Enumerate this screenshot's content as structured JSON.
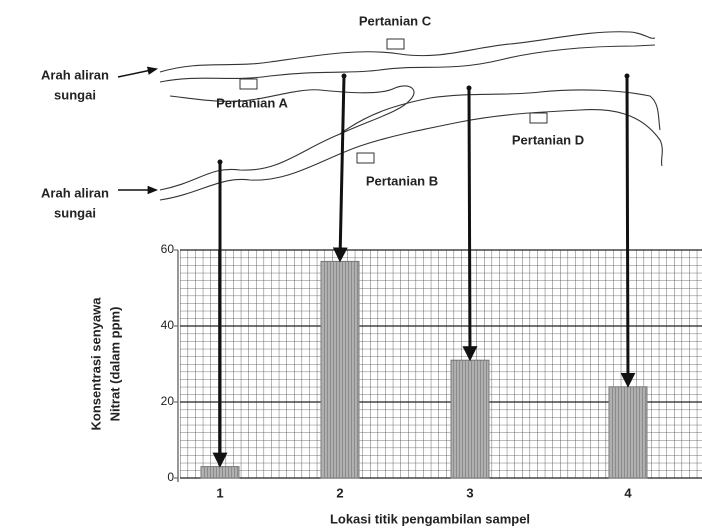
{
  "chart_data": {
    "type": "bar",
    "categories": [
      "1",
      "2",
      "3",
      "4"
    ],
    "values": [
      3,
      57,
      31,
      24
    ],
    "color": "#9a9a9a",
    "ylim": [
      0,
      60
    ],
    "yticks": [
      0,
      20,
      40,
      60
    ],
    "grid": true,
    "ylabel": [
      "Konsentrasi senyawa",
      "Nitrat (dalam ppm)"
    ],
    "xlabel": "Lokasi titik pengambilan sampel"
  },
  "map": {
    "labels": [
      "Arah aliran",
      "sungai",
      "Arah aliran",
      "sungai",
      "Pertanian A",
      "Pertanian B",
      "Pertanian C",
      "Pertanian D"
    ]
  }
}
